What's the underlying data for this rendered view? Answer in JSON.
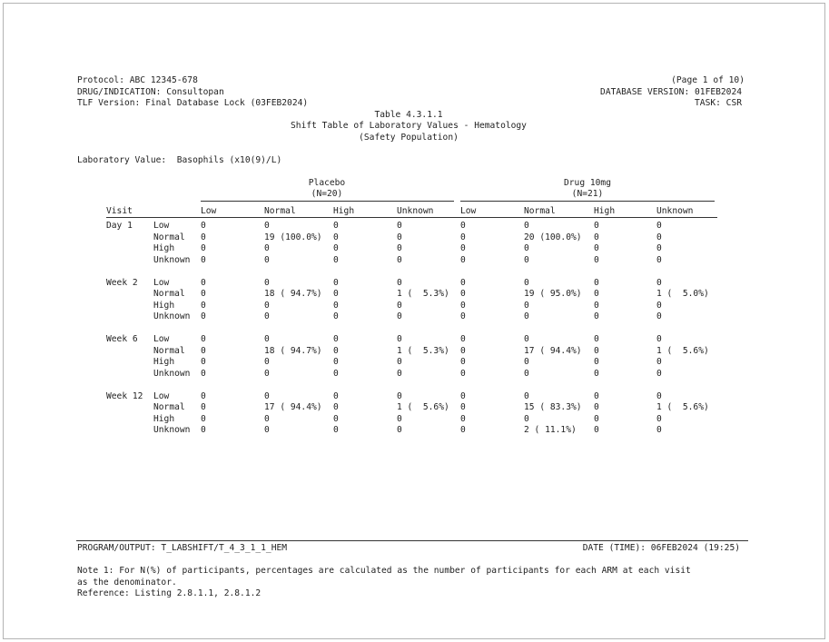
{
  "header": {
    "protocol": "Protocol: ABC 12345-678",
    "drug_indication": "DRUG/INDICATION: Consultopan",
    "tlf_version": "TLF Version: Final Database Lock (03FEB2024)",
    "page": "(Page 1 of 10)",
    "database_version": "DATABASE VERSION: 01FEB2024",
    "task": "TASK: CSR"
  },
  "title": {
    "table_number": "Table 4.3.1.1",
    "title": "Shift Table of Laboratory Values - Hematology",
    "population": "(Safety Population)"
  },
  "lab_value": "Laboratory Value:  Basophils (x10(9)/L)",
  "arms": [
    {
      "name": "Placebo",
      "n": "(N=20)"
    },
    {
      "name": "Drug 10mg",
      "n": "(N=21)"
    }
  ],
  "columns": {
    "visit": "Visit",
    "categories": [
      "Low",
      "Normal",
      "High",
      "Unknown",
      "Low",
      "Normal",
      "High",
      "Unknown"
    ]
  },
  "visits": [
    {
      "visit": "Day 1",
      "rows": [
        {
          "baseline": "Low",
          "cells": [
            "0",
            "0",
            "0",
            "0",
            "0",
            "0",
            "0",
            "0"
          ]
        },
        {
          "baseline": "Normal",
          "cells": [
            "0",
            "19 (100.0%)",
            "0",
            "0",
            "0",
            "20 (100.0%)",
            "0",
            "0"
          ]
        },
        {
          "baseline": "High",
          "cells": [
            "0",
            "0",
            "0",
            "0",
            "0",
            "0",
            "0",
            "0"
          ]
        },
        {
          "baseline": "Unknown",
          "cells": [
            "0",
            "0",
            "0",
            "0",
            "0",
            "0",
            "0",
            "0"
          ]
        }
      ]
    },
    {
      "visit": "Week 2",
      "rows": [
        {
          "baseline": "Low",
          "cells": [
            "0",
            "0",
            "0",
            "0",
            "0",
            "0",
            "0",
            "0"
          ]
        },
        {
          "baseline": "Normal",
          "cells": [
            "0",
            "18 ( 94.7%)",
            "0",
            "1 (  5.3%)",
            "0",
            "19 ( 95.0%)",
            "0",
            "1 (  5.0%)"
          ]
        },
        {
          "baseline": "High",
          "cells": [
            "0",
            "0",
            "0",
            "0",
            "0",
            "0",
            "0",
            "0"
          ]
        },
        {
          "baseline": "Unknown",
          "cells": [
            "0",
            "0",
            "0",
            "0",
            "0",
            "0",
            "0",
            "0"
          ]
        }
      ]
    },
    {
      "visit": "Week 6",
      "rows": [
        {
          "baseline": "Low",
          "cells": [
            "0",
            "0",
            "0",
            "0",
            "0",
            "0",
            "0",
            "0"
          ]
        },
        {
          "baseline": "Normal",
          "cells": [
            "0",
            "18 ( 94.7%)",
            "0",
            "1 (  5.3%)",
            "0",
            "17 ( 94.4%)",
            "0",
            "1 (  5.6%)"
          ]
        },
        {
          "baseline": "High",
          "cells": [
            "0",
            "0",
            "0",
            "0",
            "0",
            "0",
            "0",
            "0"
          ]
        },
        {
          "baseline": "Unknown",
          "cells": [
            "0",
            "0",
            "0",
            "0",
            "0",
            "0",
            "0",
            "0"
          ]
        }
      ]
    },
    {
      "visit": "Week 12",
      "rows": [
        {
          "baseline": "Low",
          "cells": [
            "0",
            "0",
            "0",
            "0",
            "0",
            "0",
            "0",
            "0"
          ]
        },
        {
          "baseline": "Normal",
          "cells": [
            "0",
            "17 ( 94.4%)",
            "0",
            "1 (  5.6%)",
            "0",
            "15 ( 83.3%)",
            "0",
            "1 (  5.6%)"
          ]
        },
        {
          "baseline": "High",
          "cells": [
            "0",
            "0",
            "0",
            "0",
            "0",
            "0",
            "0",
            "0"
          ]
        },
        {
          "baseline": "Unknown",
          "cells": [
            "0",
            "0",
            "0",
            "0",
            "0",
            "2 ( 11.1%)",
            "0",
            "0"
          ]
        }
      ]
    }
  ],
  "footer": {
    "program_output": "PROGRAM/OUTPUT: T_LABSHIFT/T_4_3_1_1_HEM",
    "date_time": "DATE (TIME): 06FEB2024 (19:25)",
    "note_line1": "Note 1: For N(%) of participants, percentages are calculated as the number of participants for each ARM at each visit",
    "note_line2": "as the denominator.",
    "reference": "Reference: Listing 2.8.1.1, 2.8.1.2"
  }
}
